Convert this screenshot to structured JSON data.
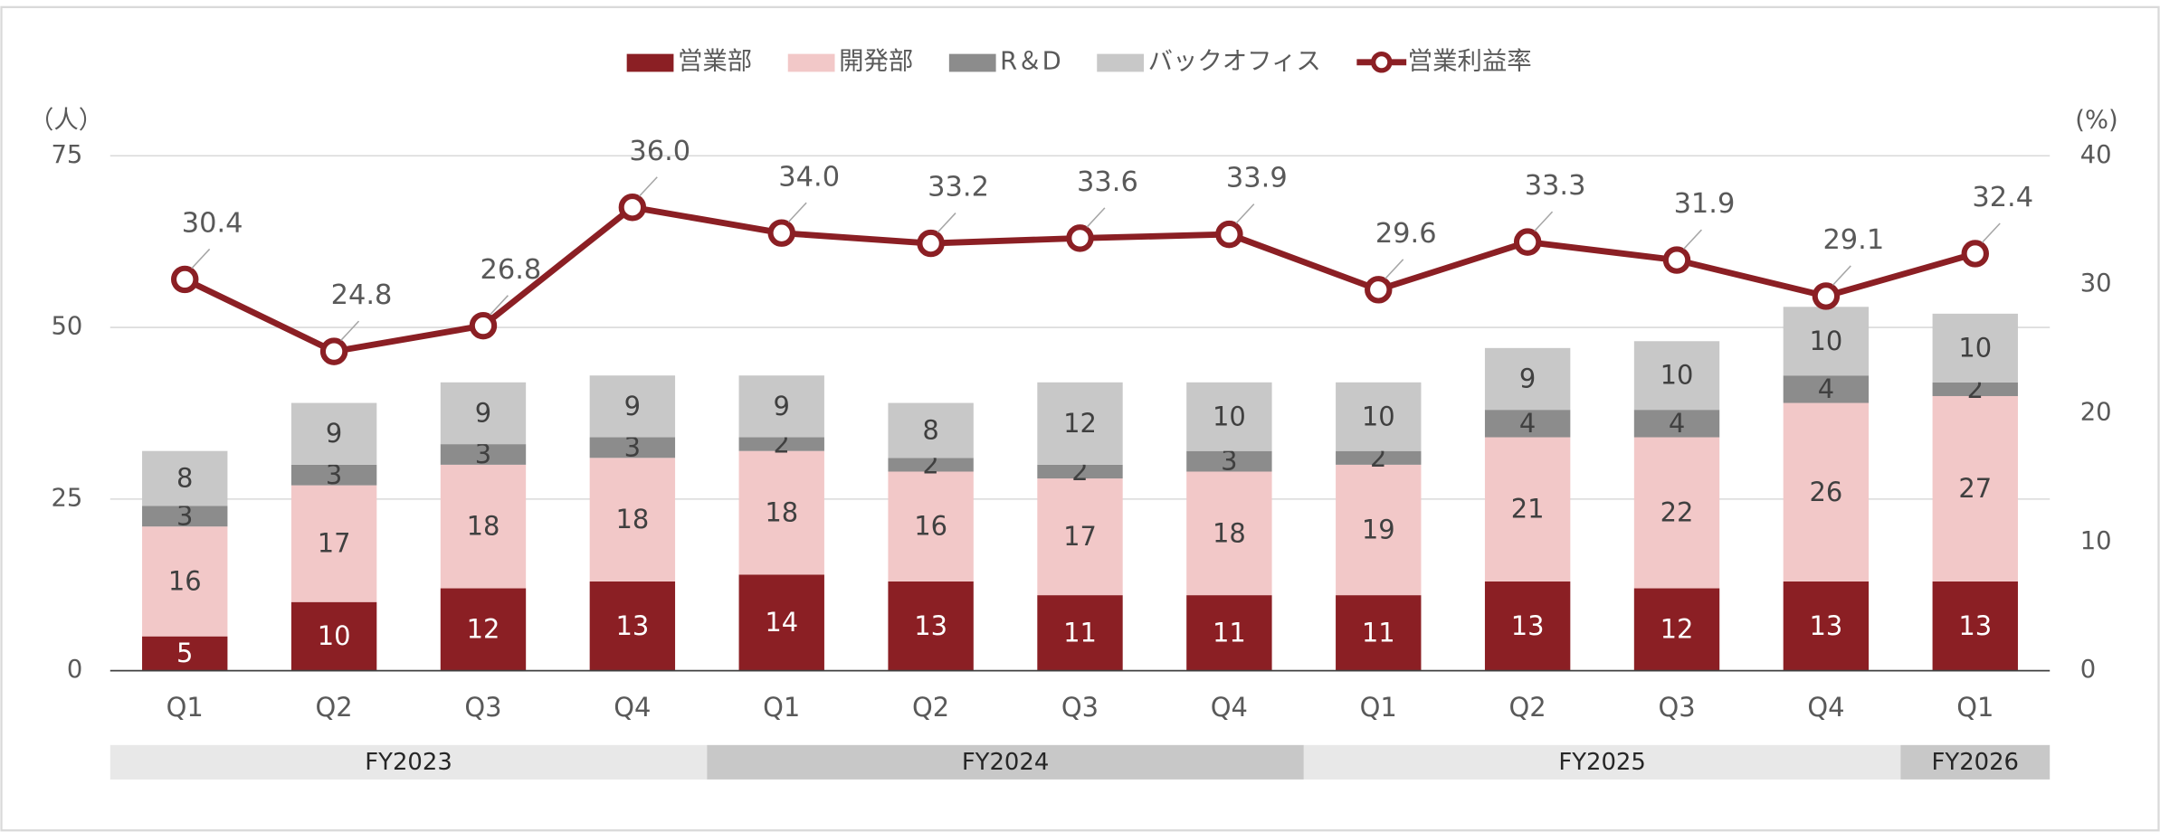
{
  "chart_data": {
    "type": "bar",
    "categories": [
      "Q1",
      "Q2",
      "Q3",
      "Q4",
      "Q1",
      "Q2",
      "Q3",
      "Q4",
      "Q1",
      "Q2",
      "Q3",
      "Q4",
      "Q1"
    ],
    "groups": [
      {
        "label": "FY2023",
        "span": 4
      },
      {
        "label": "FY2024",
        "span": 4
      },
      {
        "label": "FY2025",
        "span": 4
      },
      {
        "label": "FY2026",
        "span": 1
      }
    ],
    "series": [
      {
        "name": "営業部",
        "color": "#8b1f24",
        "values": [
          5,
          10,
          12,
          13,
          14,
          13,
          11,
          11,
          11,
          13,
          12,
          13,
          13
        ]
      },
      {
        "name": "開発部",
        "color": "#f2c8c8",
        "values": [
          16,
          17,
          18,
          18,
          18,
          16,
          17,
          18,
          19,
          21,
          22,
          26,
          27
        ]
      },
      {
        "name": "R＆D",
        "color": "#8c8c8c",
        "values": [
          3,
          3,
          3,
          3,
          2,
          2,
          2,
          3,
          2,
          4,
          4,
          4,
          2
        ]
      },
      {
        "name": "バックオフィス",
        "color": "#c8c8c8",
        "values": [
          8,
          9,
          9,
          9,
          9,
          8,
          12,
          10,
          10,
          9,
          10,
          10,
          10
        ]
      },
      {
        "name": "営業利益率",
        "color": "#8b1f24",
        "type": "line",
        "axis": "y2",
        "values": [
          30.4,
          24.8,
          26.8,
          36.0,
          34.0,
          33.2,
          33.6,
          33.9,
          29.6,
          33.3,
          31.9,
          29.1,
          32.4
        ],
        "value_labels": [
          "30.4",
          "24.8",
          "26.8",
          "36.0",
          "34.0",
          "33.2",
          "33.6",
          "33.9",
          "29.6",
          "33.3",
          "31.9",
          "29.1",
          "32.4"
        ]
      }
    ],
    "ylabel": "（人）",
    "y2label": "(%)",
    "ylim": [
      0,
      75
    ],
    "yticks": [
      0,
      25,
      50,
      75
    ],
    "y2lim": [
      0,
      40
    ],
    "y2ticks": [
      0,
      10,
      20,
      30,
      40
    ],
    "stacked": true,
    "grid": true,
    "legend": "top"
  }
}
